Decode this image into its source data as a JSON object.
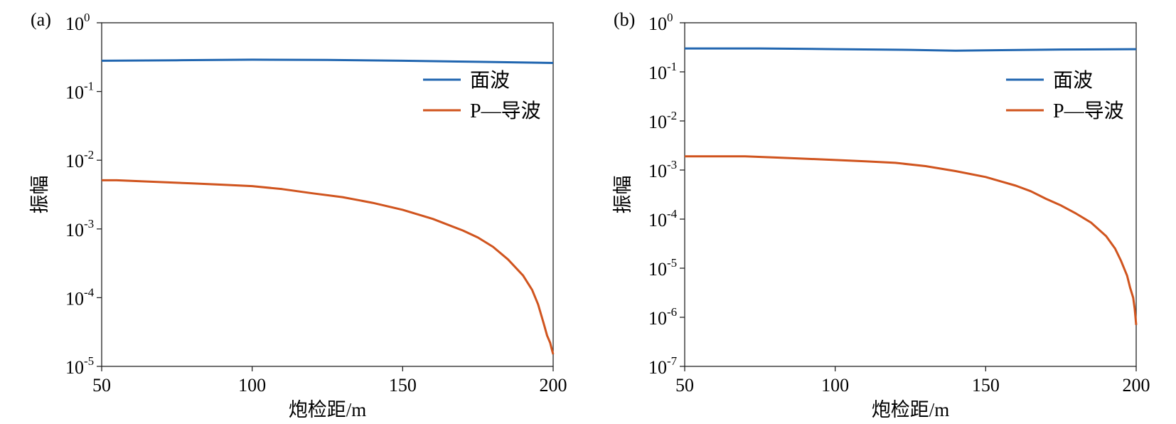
{
  "chart_data": [
    {
      "type": "line",
      "panel_label": "(a)",
      "xlabel": "炮检距/m",
      "ylabel": "振幅",
      "xlim": [
        50,
        200
      ],
      "x_ticks": [
        50,
        100,
        150,
        200
      ],
      "y_scale": "log",
      "ylim": [
        1e-05,
        1
      ],
      "y_tick_exponents": [
        0,
        -1,
        -2,
        -3,
        -4,
        -5
      ],
      "legend_position": "upper-right",
      "series": [
        {
          "name": "面波",
          "color": "#2166b0",
          "x": [
            50,
            75,
            100,
            125,
            150,
            175,
            200
          ],
          "y": [
            0.28,
            0.285,
            0.29,
            0.288,
            0.28,
            0.27,
            0.26
          ]
        },
        {
          "name": "P—导波",
          "color": "#d0541e",
          "x": [
            50,
            55,
            60,
            70,
            80,
            90,
            100,
            110,
            120,
            130,
            140,
            150,
            160,
            170,
            175,
            180,
            185,
            190,
            193,
            195,
            197,
            198,
            199,
            199.5,
            200
          ],
          "y": [
            0.0051,
            0.0051,
            0.005,
            0.0048,
            0.0046,
            0.0044,
            0.0042,
            0.0038,
            0.0033,
            0.0029,
            0.0024,
            0.0019,
            0.0014,
            0.00095,
            0.00075,
            0.00055,
            0.00036,
            0.00021,
            0.00013,
            8e-05,
            4e-05,
            2.8e-05,
            2.2e-05,
            1.8e-05,
            1.5e-05
          ]
        }
      ]
    },
    {
      "type": "line",
      "panel_label": "(b)",
      "xlabel": "炮检距/m",
      "ylabel": "振幅",
      "xlim": [
        50,
        200
      ],
      "x_ticks": [
        50,
        100,
        150,
        200
      ],
      "y_scale": "log",
      "ylim": [
        1e-07,
        1
      ],
      "y_tick_exponents": [
        0,
        -1,
        -2,
        -3,
        -4,
        -5,
        -6,
        -7
      ],
      "legend_position": "upper-right",
      "series": [
        {
          "name": "面波",
          "color": "#2166b0",
          "x": [
            50,
            75,
            100,
            125,
            140,
            150,
            175,
            200
          ],
          "y": [
            0.3,
            0.3,
            0.29,
            0.28,
            0.27,
            0.275,
            0.285,
            0.29
          ]
        },
        {
          "name": "P—导波",
          "color": "#d0541e",
          "x": [
            50,
            60,
            70,
            80,
            90,
            100,
            110,
            120,
            130,
            140,
            150,
            160,
            165,
            170,
            175,
            180,
            185,
            190,
            193,
            195,
            197,
            198,
            199,
            199.5,
            200
          ],
          "y": [
            0.0019,
            0.0019,
            0.0019,
            0.0018,
            0.0017,
            0.0016,
            0.0015,
            0.0014,
            0.0012,
            0.00095,
            0.00072,
            0.00048,
            0.00037,
            0.00026,
            0.00019,
            0.00013,
            8.5e-05,
            4.5e-05,
            2.5e-05,
            1.4e-05,
            7e-06,
            4e-06,
            2.5e-06,
            1.5e-06,
            7e-07
          ]
        }
      ]
    }
  ]
}
